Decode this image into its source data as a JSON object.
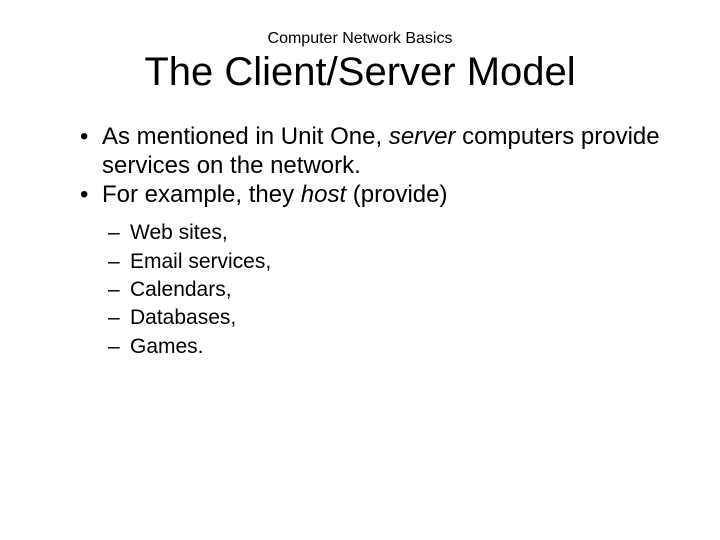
{
  "slide": {
    "subtitle": "Computer Network Basics",
    "title": "The Client/Server Model",
    "bullets": [
      {
        "pre": "As mentioned in Unit One, ",
        "italic": "server",
        "post": " computers provide services on the network."
      },
      {
        "pre": "For example, they ",
        "italic": "host",
        "post": " (provide)"
      }
    ],
    "subbullets": [
      "Web sites,",
      "Email services,",
      "Calendars,",
      "Databases,",
      "Games."
    ],
    "colors": {
      "background": "#ffffff",
      "text": "#000000"
    },
    "fonts": {
      "subtitle_size": 16,
      "title_size": 40,
      "bullet_size": 24,
      "subbullet_size": 21
    }
  }
}
